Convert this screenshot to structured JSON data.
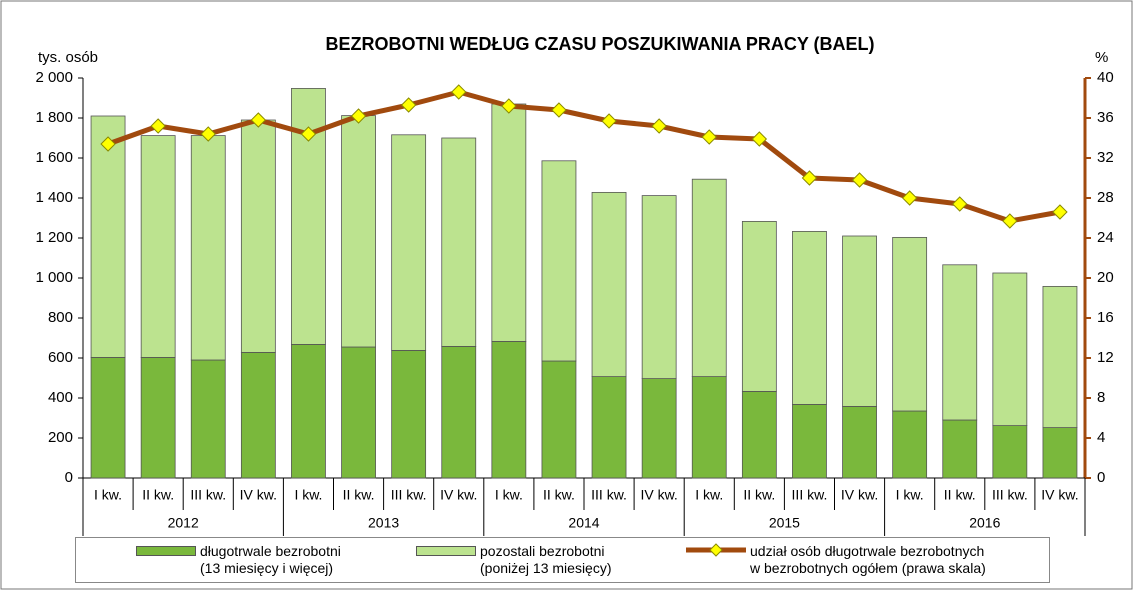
{
  "chart_data": {
    "type": "stacked_bar_line",
    "title": "BEZROBOTNI WEDŁUG CZASU POSZUKIWANIA PRACY (BAEL)",
    "y_label": "tys. osób",
    "y2_label": "%",
    "categories": [
      "I kw.",
      "II kw.",
      "III kw.",
      "IV kw.",
      "I kw.",
      "II kw.",
      "III kw.",
      "IV kw.",
      "I kw.",
      "II kw.",
      "III kw.",
      "IV kw.",
      "I kw.",
      "II kw.",
      "III kw.",
      "IV kw.",
      "I kw.",
      "II kw.",
      "III kw.",
      "IV kw."
    ],
    "groups": [
      "2012",
      "2013",
      "2014",
      "2015",
      "2016"
    ],
    "series": [
      {
        "name": "długotrwale bezrobotni\n(13 miesięcy i więcej)",
        "color": "#7ab83c",
        "values": [
          603,
          603,
          590,
          628,
          668,
          655,
          638,
          658,
          683,
          585,
          507,
          497,
          507,
          433,
          368,
          358,
          335,
          290,
          262,
          252
        ]
      },
      {
        "name": "pozostali bezrobotni\n(poniżej 13 miesięcy)",
        "color": "#bce38f",
        "values": [
          1207,
          1109,
          1122,
          1162,
          1280,
          1157,
          1078,
          1042,
          1187,
          1001,
          921,
          915,
          987,
          850,
          865,
          852,
          868,
          776,
          763,
          706
        ]
      },
      {
        "name": "udział osób długotrwale bezrobotnych\nw bezrobotnych ogółem (prawa skala)",
        "color": "#a14a0e",
        "axis": "y2",
        "values": [
          33.4,
          35.2,
          34.4,
          35.8,
          34.4,
          36.2,
          37.3,
          38.6,
          37.2,
          36.8,
          35.7,
          35.2,
          34.1,
          33.9,
          30.0,
          29.8,
          28.0,
          27.4,
          25.7,
          26.6
        ]
      }
    ],
    "ylim": [
      0,
      2000
    ],
    "yticks": [
      0,
      200,
      400,
      600,
      800,
      {
        "value": 1000,
        "label": "1 000"
      },
      {
        "value": 1200,
        "label": "1 200"
      },
      {
        "value": 1400,
        "label": "1 400"
      },
      {
        "value": 1600,
        "label": "1 600"
      },
      {
        "value": 1800,
        "label": "1 800"
      },
      {
        "value": 2000,
        "label": "2 000"
      }
    ],
    "y2lim": [
      0,
      40
    ],
    "y2ticks": [
      0,
      4,
      8,
      12,
      16,
      20,
      24,
      28,
      32,
      36,
      40
    ]
  }
}
